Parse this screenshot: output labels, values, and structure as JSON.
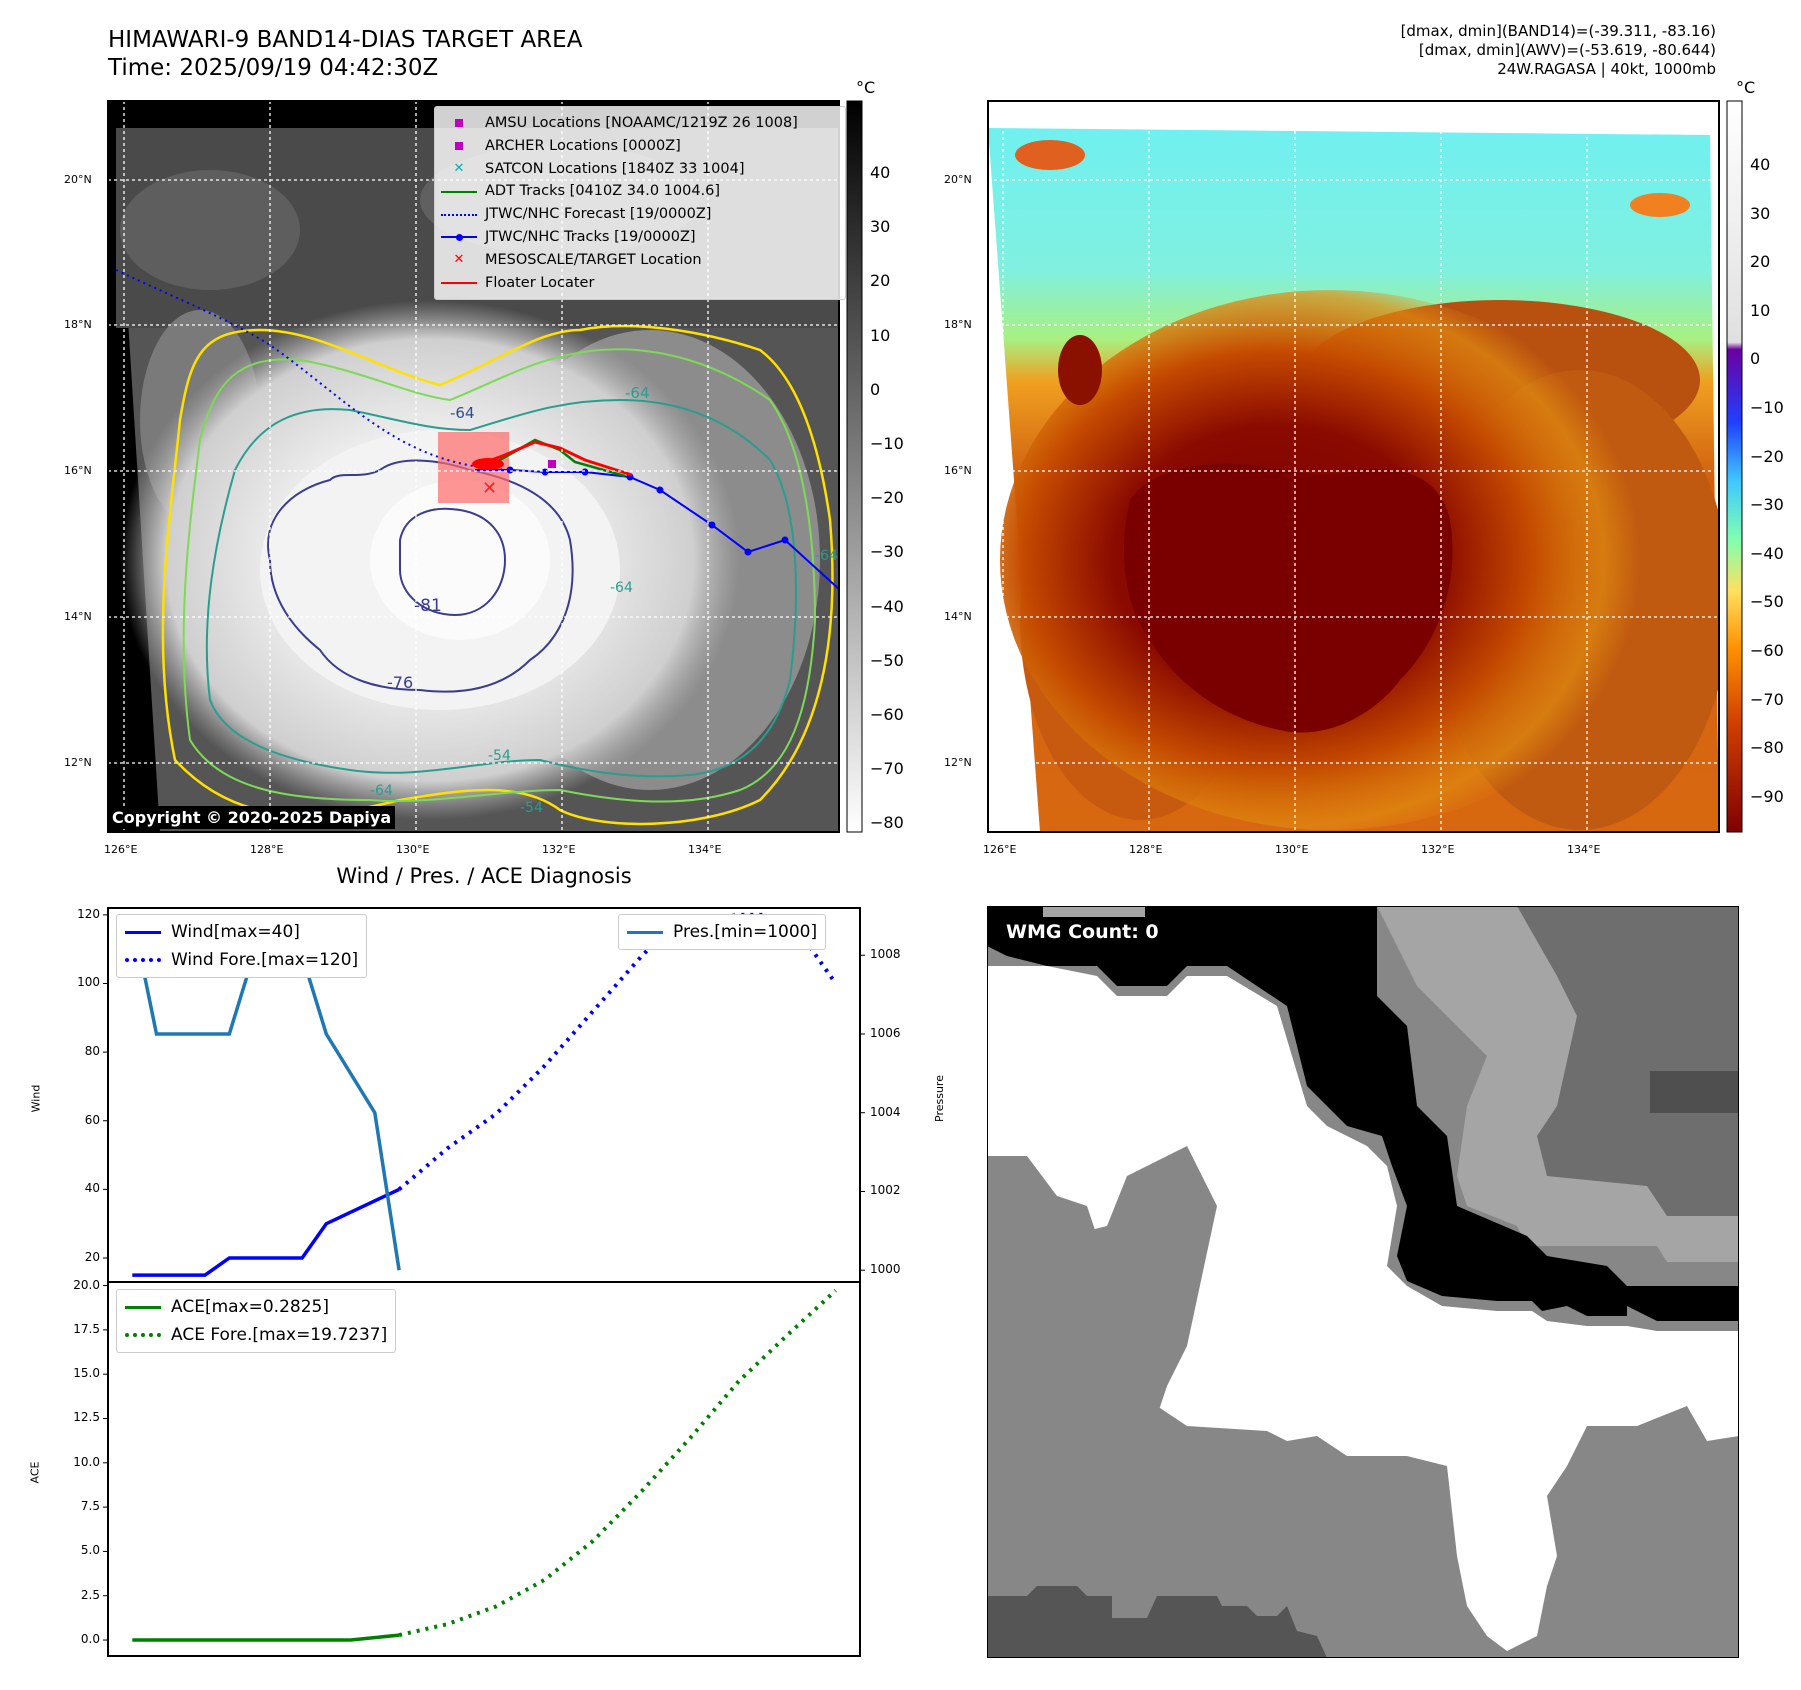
{
  "header": {
    "title_line1": "HIMAWARI-9 BAND14-DIAS TARGET AREA",
    "title_line2": "Time: 2025/09/19 04:42:30Z",
    "info_line1": "[dmax, dmin](BAND14)=(-39.311, -83.16)",
    "info_line2": "[dmax, dmin](AWV)=(-53.619, -80.644)",
    "info_line3": "24W.RAGASA | 40kt, 1000mb"
  },
  "map_left": {
    "unit": "°C",
    "copyright": "Copyright © 2020-2025 Dapiya",
    "lon_ticks": [
      "126°E",
      "128°E",
      "130°E",
      "132°E",
      "134°E"
    ],
    "lat_ticks": [
      "20°N",
      "18°N",
      "16°N",
      "14°N",
      "12°N"
    ],
    "colorbar_ticks": [
      "40",
      "30",
      "20",
      "10",
      "0",
      "−10",
      "−20",
      "−30",
      "−40",
      "−50",
      "−60",
      "−70",
      "−80"
    ],
    "contour_labels": [
      "-64",
      "-64",
      "-81",
      "-76",
      "-64",
      "-54",
      "-64",
      "-54",
      "-64"
    ],
    "legend": [
      {
        "label": "AMSU Locations [NOAAMC/1219Z 26 1008]",
        "marker": "square",
        "color": "#c000c0"
      },
      {
        "label": "ARCHER Locations [0000Z]",
        "marker": "square",
        "color": "#c000c0"
      },
      {
        "label": "SATCON Locations [1840Z 33 1004]",
        "marker": "x",
        "color": "#00b0b0"
      },
      {
        "label": "ADT Tracks [0410Z 34.0 1004.6]",
        "marker": "line",
        "color": "#008000"
      },
      {
        "label": "JTWC/NHC Forecast [19/0000Z]",
        "marker": "dotted",
        "color": "#0000ff"
      },
      {
        "label": "JTWC/NHC Tracks [19/0000Z]",
        "marker": "line-dot",
        "color": "#0000ff"
      },
      {
        "label": "MESOSCALE/TARGET Location",
        "marker": "x",
        "color": "#ff0000"
      },
      {
        "label": "Floater Locater",
        "marker": "line",
        "color": "#ff0000"
      }
    ]
  },
  "map_right": {
    "unit": "°C",
    "lon_ticks": [
      "126°E",
      "128°E",
      "130°E",
      "132°E",
      "134°E"
    ],
    "lat_ticks": [
      "20°N",
      "18°N",
      "16°N",
      "14°N",
      "12°N"
    ],
    "colorbar_ticks": [
      "40",
      "30",
      "20",
      "10",
      "0",
      "−10",
      "−20",
      "−30",
      "−40",
      "−50",
      "−60",
      "−70",
      "−80",
      "−90"
    ]
  },
  "diagnosis": {
    "title": "Wind / Pres. / ACE Diagnosis",
    "wind_ylabel": "Wind",
    "pres_ylabel": "Pressure",
    "ace_ylabel": "ACE",
    "legend_wind": "Wind[max=40]",
    "legend_wind_fore": "Wind Fore.[max=120]",
    "legend_pres": "Pres.[min=1000]",
    "legend_ace": "ACE[max=0.2825]",
    "legend_ace_fore": "ACE Fore.[max=19.7237]",
    "wind_ticks": [
      "120",
      "100",
      "80",
      "60",
      "40",
      "20"
    ],
    "pres_ticks": [
      "1008",
      "1006",
      "1004",
      "1002",
      "1000"
    ],
    "ace_ticks": [
      "20.0",
      "17.5",
      "15.0",
      "12.5",
      "10.0",
      "7.5",
      "5.0",
      "2.5",
      "0.0"
    ]
  },
  "wmg": {
    "count_label": "WMG Count: 0"
  },
  "colors": {
    "wind": "#0000ff",
    "pressure": "#1f77b4",
    "ace": "#008000"
  },
  "chart_data": [
    {
      "type": "line",
      "title": "Wind / Pres. / ACE Diagnosis",
      "ylabel": "Wind",
      "ylim": [
        13,
        122
      ],
      "xlim": [
        0,
        31
      ],
      "series": [
        {
          "name": "Wind[max=40]",
          "x": [
            1,
            4,
            5,
            8,
            9,
            12
          ],
          "values": [
            15,
            15,
            20,
            20,
            30,
            40
          ]
        },
        {
          "name": "Wind Fore.[max=120]",
          "x": [
            12,
            13,
            14,
            15,
            16,
            17,
            18,
            19,
            20,
            21,
            22,
            23,
            24,
            25,
            26,
            27,
            28,
            29,
            30
          ],
          "values": [
            40,
            46,
            52,
            57,
            62,
            69,
            76,
            84,
            92,
            100,
            108,
            115,
            118,
            119,
            120,
            120,
            118,
            110,
            100
          ]
        }
      ]
    },
    {
      "type": "line",
      "ylabel": "Pressure",
      "ylim": [
        999.7,
        1009.2
      ],
      "xlim": [
        0,
        31
      ],
      "series": [
        {
          "name": "Pres.[min=1000]",
          "x": [
            1,
            2,
            3,
            5,
            6,
            7,
            8,
            9,
            11,
            12
          ],
          "values": [
            1009,
            1006,
            1006,
            1006,
            1008,
            1008,
            1008,
            1006,
            1004,
            1000
          ]
        }
      ]
    },
    {
      "type": "line",
      "ylabel": "ACE",
      "ylim": [
        -0.9,
        20.2
      ],
      "xlim": [
        0,
        31
      ],
      "series": [
        {
          "name": "ACE[max=0.2825]",
          "x": [
            1,
            4,
            7,
            10,
            12
          ],
          "values": [
            0,
            0,
            0,
            0,
            0.28
          ]
        },
        {
          "name": "ACE Fore.[max=19.7237]",
          "x": [
            12,
            14,
            16,
            18,
            20,
            22,
            24,
            26,
            28,
            30
          ],
          "values": [
            0.28,
            0.9,
            1.9,
            3.4,
            5.6,
            8.4,
            11.4,
            14.6,
            17.2,
            19.72
          ]
        }
      ]
    }
  ]
}
